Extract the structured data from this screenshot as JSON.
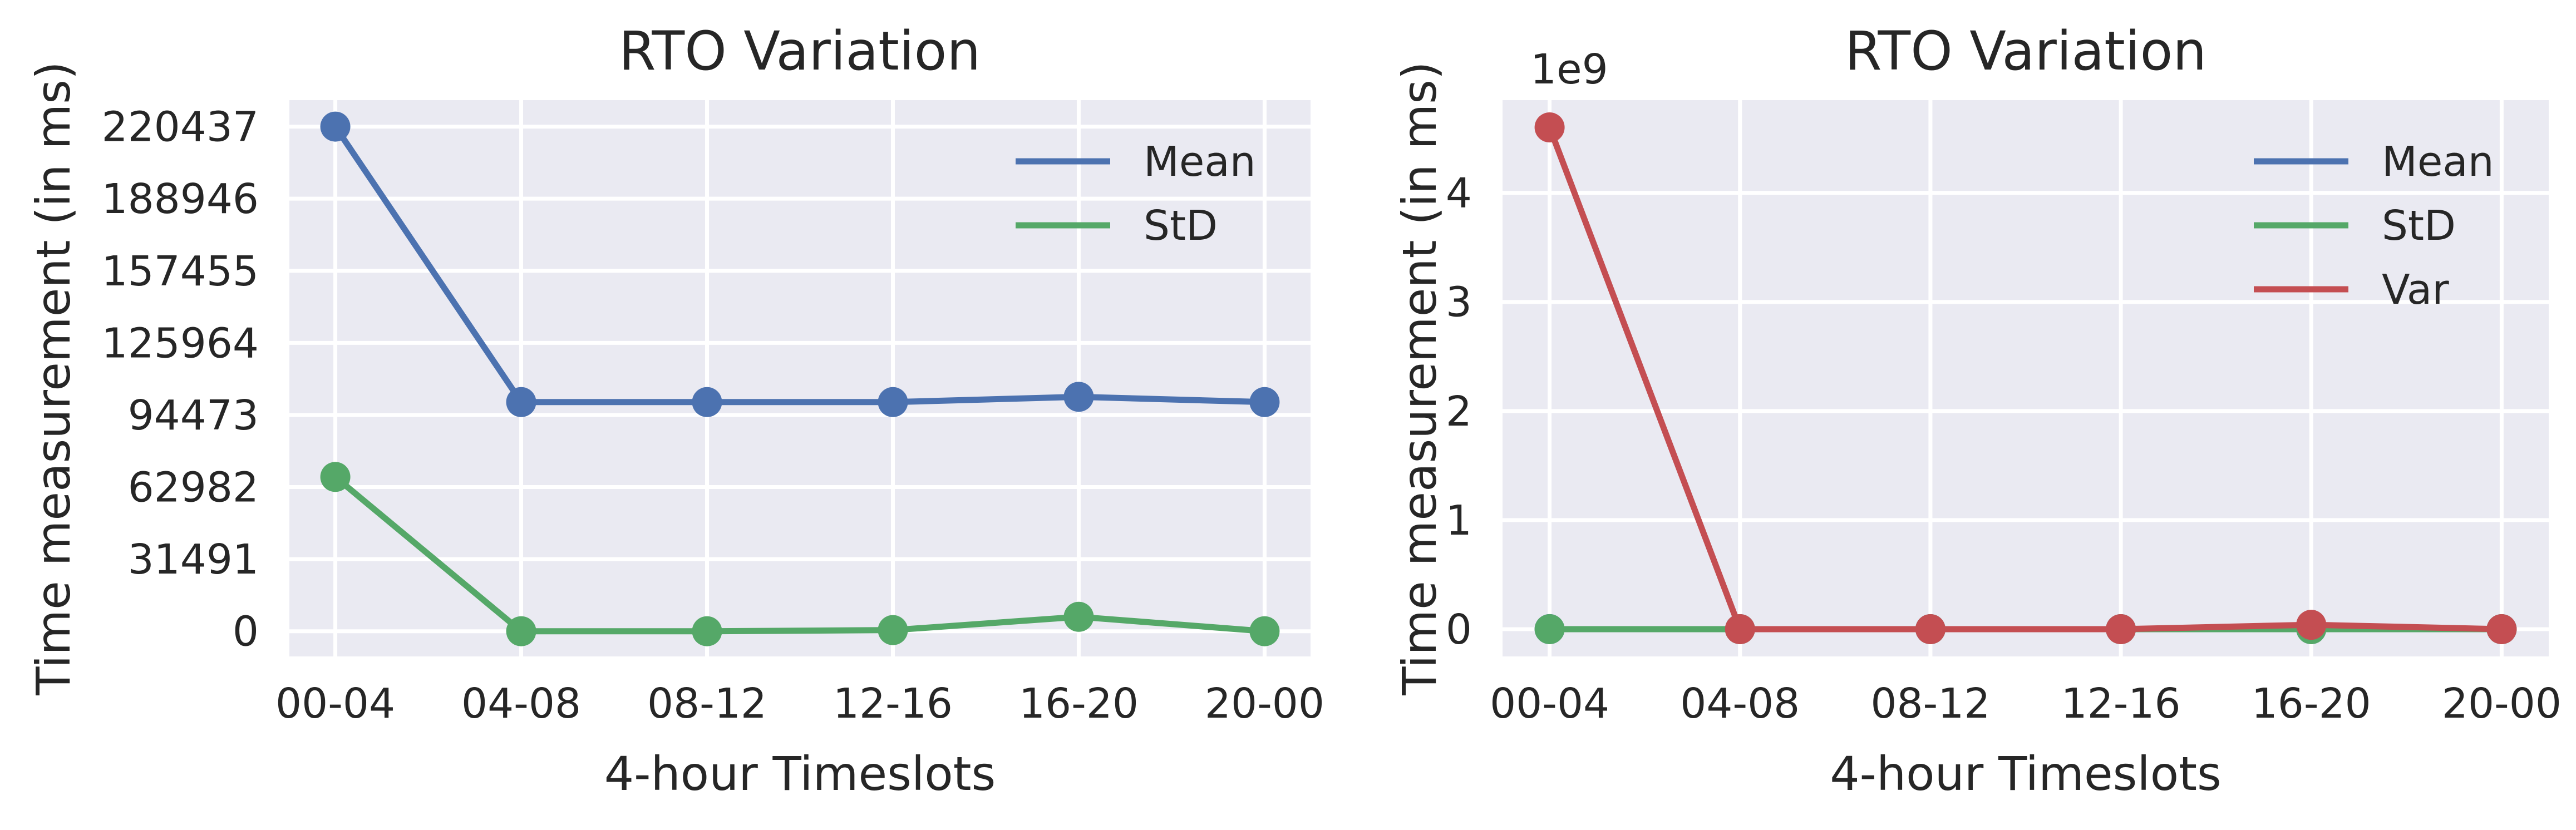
{
  "chart_data": [
    {
      "type": "line",
      "title": "RTO Variation",
      "xlabel": "4-hour Timeslots",
      "ylabel": "Time measurement (in ms)",
      "categories": [
        "00-04",
        "04-08",
        "08-12",
        "12-16",
        "16-20",
        "20-00"
      ],
      "yticks": [
        0,
        31491,
        62982,
        94473,
        125964,
        157455,
        188946,
        220437
      ],
      "ylim": [
        -11000,
        232000
      ],
      "grid": true,
      "legend_position": "top-right",
      "series": [
        {
          "name": "Mean",
          "color": "#4c72b0",
          "values": [
            220437,
            100100,
            100100,
            100100,
            102400,
            100100
          ]
        },
        {
          "name": "StD",
          "color": "#55a868",
          "values": [
            67400,
            0,
            0,
            500,
            6300,
            0
          ]
        }
      ]
    },
    {
      "type": "line",
      "title": "RTO Variation",
      "xlabel": "4-hour Timeslots",
      "ylabel": "Time measurement (in ms)",
      "offset_label": "1e9",
      "categories": [
        "00-04",
        "04-08",
        "08-12",
        "12-16",
        "16-20",
        "20-00"
      ],
      "yticks": [
        0,
        1,
        2,
        3,
        4
      ],
      "ylim": [
        -0.25,
        4.85
      ],
      "grid": true,
      "legend_position": "top-right",
      "series": [
        {
          "name": "Mean",
          "color": "#4c72b0",
          "values": [
            0.00022,
            0.0001,
            0.0001,
            0.0001,
            0.0001,
            0.0001
          ]
        },
        {
          "name": "StD",
          "color": "#55a868",
          "values": [
            7e-05,
            0,
            0,
            0,
            1e-05,
            0
          ]
        },
        {
          "name": "Var",
          "color": "#c44e52",
          "values": [
            4.6,
            0,
            0,
            0,
            0.04,
            0
          ]
        }
      ]
    }
  ]
}
